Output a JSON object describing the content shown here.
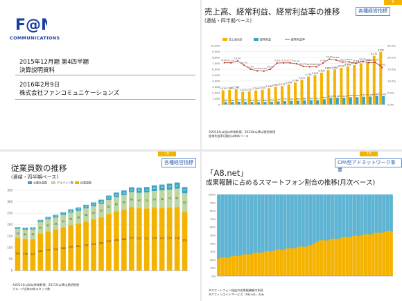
{
  "cover": {
    "logo_text": "F@N",
    "logo_sub": "COMMUNICATIONS",
    "line1": "2015年12月期 第4四半期",
    "line2": "決算説明資料",
    "date": "2016年2月9日",
    "company": "株式会社ファンコミュニケーションズ"
  },
  "slide6": {
    "page_no": "6",
    "tag": "各種経営指標",
    "title": "売上高、経常利益、経常利益率の推移",
    "subtitle": "(連結・四半期ベース)",
    "unit": "(単位:百万円)",
    "notes": [
      "※2011年以前は単体数値、2011年以降は連結数値",
      "経常利益率(連結)は単体ベース"
    ]
  },
  "slide10": {
    "page_no": "10",
    "tag": "各種経営指標",
    "title": "従業員数の推移",
    "subtitle": "(連結・四半期ベース)",
    "notes": [
      "※2011年以前は単体数値、2011年以降は連結数値",
      "グループ全体の総スタッフ数"
    ]
  },
  "slide19": {
    "page_no": "19",
    "tag": "CPA型アドネットワーク事業",
    "title1": "「A8.net」",
    "title2": "成果報酬に占めるスマートフォン割合の推移(月次ベース)",
    "notes": [
      "※スマートフォン経由の成果報酬額の割合",
      "※アフィリエイトサービス「A8.net」のみ"
    ]
  },
  "chart_data": [
    {
      "type": "bar",
      "title": "売上高、経常利益、経常利益率の推移",
      "series": [
        {
          "name": "売上高合計",
          "values": [
            2411,
            2488,
            2588,
            2170,
            2211,
            2393,
            2510,
            2780,
            2993,
            3135,
            3394,
            3748,
            4211,
            4753,
            5015,
            5405,
            5862,
            5968,
            6229,
            6488,
            6700,
            6998,
            7225,
            8270,
            8945
          ]
        },
        {
          "name": "経常利益",
          "values": [
            426,
            440,
            475,
            451,
            414,
            412,
            420,
            455,
            530,
            575,
            600,
            650,
            685,
            703,
            711,
            884,
            1131,
            1129,
            1122,
            1238,
            1247,
            1327,
            1356,
            1483,
            1405
          ]
        },
        {
          "name": "経常利益率",
          "values": [
            17.8,
            17.7,
            18.5,
            16.7,
            15.0,
            14.3,
            14.2,
            15.0,
            17.6,
            17.7,
            17.7,
            17.3,
            16.2,
            16.0,
            16.0,
            17.6,
            19.3,
            18.9,
            18.0,
            18.1,
            17.5,
            18.2,
            17.8,
            17.9,
            15.7
          ]
        }
      ],
      "ylim": [
        0,
        10000
      ],
      "y2lim": [
        0,
        25
      ]
    },
    {
      "type": "bar",
      "title": "従業員数の推移",
      "series": [
        {
          "name": "派遣社員数",
          "values": [
            7,
            9,
            10,
            10,
            11,
            12,
            12,
            14,
            15,
            16,
            17,
            18,
            19,
            20,
            20,
            21,
            22,
            23,
            24,
            25,
            26,
            27,
            27
          ]
        },
        {
          "name": "アルバイト数",
          "values": [
            39,
            40,
            42,
            49,
            52,
            53,
            54,
            54,
            56,
            58,
            57,
            59,
            61,
            62,
            63,
            65,
            67,
            70,
            73,
            76,
            78,
            81,
            82
          ]
        },
        {
          "name": "従業員数",
          "values": [
            143,
            138,
            137,
            162,
            171,
            178,
            188,
            199,
            204,
            213,
            223,
            232,
            247,
            258,
            266,
            277,
            272,
            271,
            274,
            274,
            275,
            276,
            255
          ]
        }
      ],
      "ylim": [
        0,
        350
      ]
    },
    {
      "type": "area",
      "title": "成果報酬に占めるスマートフォン割合の推移(月次ベース)",
      "ylim": [
        0,
        100
      ]
    }
  ]
}
